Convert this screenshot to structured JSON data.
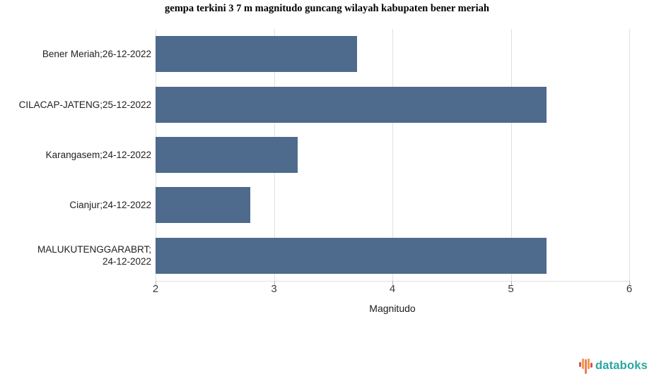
{
  "title": "gempa terkini 3 7 m magnitudo guncang wilayah kabupaten bener meriah",
  "chart_data": {
    "type": "bar",
    "orientation": "horizontal",
    "categories": [
      "Bener Meriah;26-12-2022",
      "CILACAP-JATENG;25-12-2022",
      "Karangasem;24-12-2022",
      "Cianjur;24-12-2022",
      "MALUKUTENGGARABRT; 24-12-2022"
    ],
    "values": [
      3.7,
      5.3,
      3.2,
      2.8,
      5.3
    ],
    "xlabel": "Magnitudo",
    "xlim": [
      2,
      6
    ],
    "xticks": [
      2,
      3,
      4,
      5,
      6
    ],
    "bar_color": "#4e6a8c",
    "gridline_color": "#e0e0e0",
    "grid": true,
    "legend": false
  },
  "branding": {
    "logo_text": "databoks",
    "logo_text_color": "#2aa6a2",
    "logo_bar_colors": [
      "#d9534a",
      "#f29b4b",
      "#ec7d66",
      "#f29b4b",
      "#d9534a"
    ]
  }
}
